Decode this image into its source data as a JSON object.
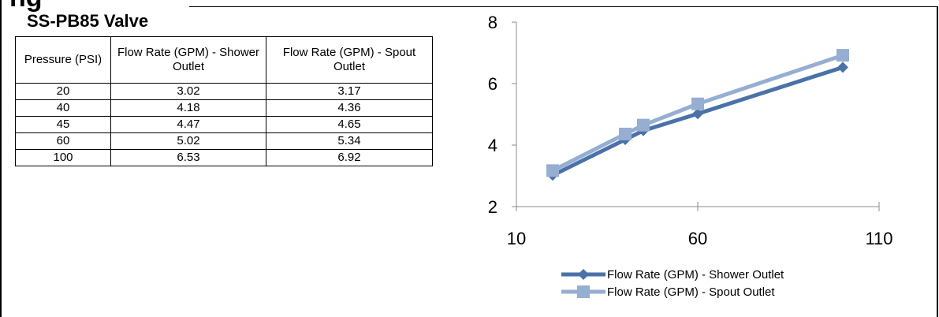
{
  "title": "SS-PB85 Valve",
  "partial_heading": "ng",
  "table": {
    "headers": [
      "Pressure (PSI)",
      "Flow Rate (GPM) - Shower Outlet",
      "Flow Rate (GPM) - Spout Outlet"
    ],
    "rows": [
      [
        "20",
        "3.02",
        "3.17"
      ],
      [
        "40",
        "4.18",
        "4.36"
      ],
      [
        "45",
        "4.47",
        "4.65"
      ],
      [
        "60",
        "5.02",
        "5.34"
      ],
      [
        "100",
        "6.53",
        "6.92"
      ]
    ]
  },
  "chart_data": {
    "type": "line",
    "x": [
      20,
      40,
      45,
      60,
      100
    ],
    "series": [
      {
        "name": "Flow Rate (GPM) - Shower Outlet",
        "values": [
          3.02,
          4.18,
          4.47,
          5.02,
          6.53
        ],
        "color": "#4a72a8",
        "marker": "diamond"
      },
      {
        "name": "Flow Rate (GPM) - Spout Outlet",
        "values": [
          3.17,
          4.36,
          4.65,
          5.34,
          6.92
        ],
        "color": "#95aed1",
        "marker": "square"
      }
    ],
    "xlim": [
      10,
      110
    ],
    "ylim": [
      2,
      8
    ],
    "x_ticks": [
      10,
      60,
      110
    ],
    "y_ticks": [
      2,
      4,
      6,
      8
    ],
    "title": "",
    "xlabel": "",
    "ylabel": "",
    "grid": false,
    "legend_position": "bottom"
  }
}
